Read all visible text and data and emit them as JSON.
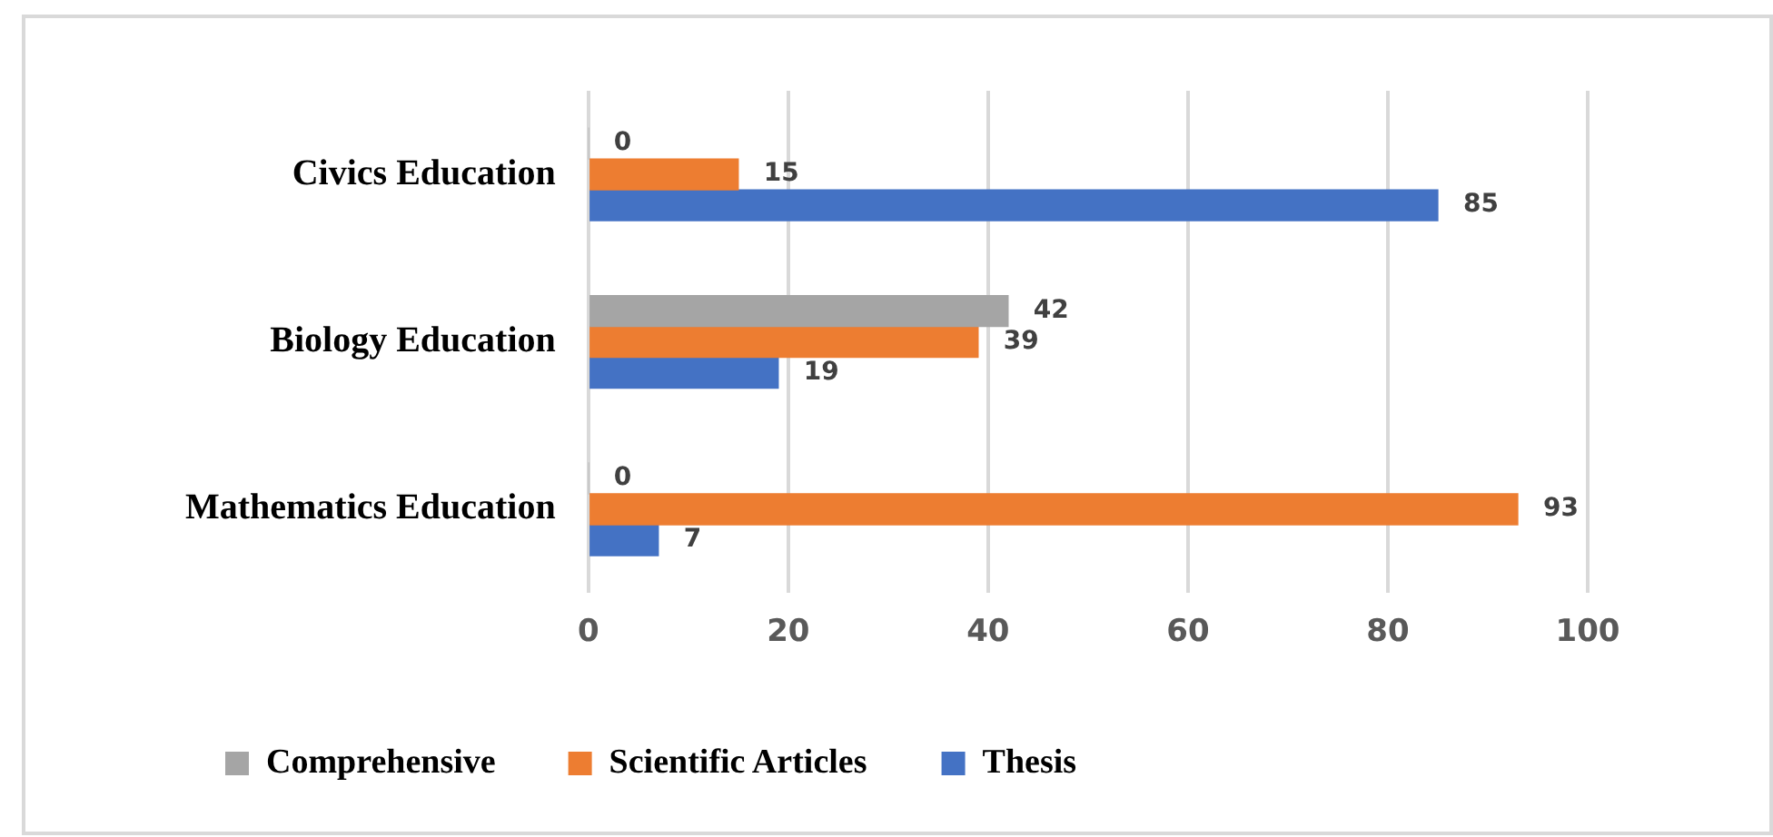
{
  "chart_data": {
    "type": "bar",
    "orientation": "horizontal",
    "categories": [
      "Civics Education",
      "Biology Education",
      "Mathematics Education"
    ],
    "series": [
      {
        "name": "Comprehensive",
        "color": "#a5a5a5",
        "values": [
          0,
          42,
          0
        ]
      },
      {
        "name": "Scientific Articles",
        "color": "#ed7d31",
        "values": [
          15,
          39,
          93
        ]
      },
      {
        "name": "Thesis",
        "color": "#4472c4",
        "values": [
          85,
          19,
          7
        ]
      }
    ],
    "xlim": [
      0,
      100
    ],
    "xticks": [
      0,
      20,
      40,
      60,
      80,
      100
    ],
    "grid": "x",
    "legend": "bottom left",
    "data_labels": true
  }
}
